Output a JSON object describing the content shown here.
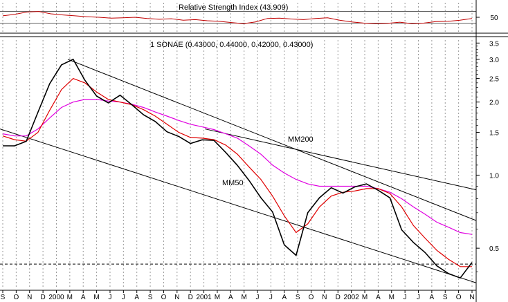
{
  "chart_data": [
    {
      "type": "line",
      "title": "Relative Strength Index (43.909)",
      "y_ticks": [
        "50"
      ],
      "ylim": [
        0,
        100
      ],
      "grid": true,
      "series": [
        {
          "values": [
            55,
            60,
            68,
            70,
            62,
            58,
            55,
            52,
            50,
            47,
            48,
            50,
            46,
            43,
            45,
            40,
            42,
            38,
            36,
            32,
            28,
            34,
            46,
            47,
            44,
            42,
            46,
            48,
            40,
            34,
            30,
            28,
            29,
            33,
            28,
            30,
            35,
            36,
            40,
            46
          ]
        }
      ],
      "colors": {
        "line": "#c00000"
      }
    },
    {
      "type": "line",
      "title": "1 SONAE (0.43000, 0.44000, 0.42000, 0.43000)",
      "y_scale": "log",
      "ylim": [
        0.34,
        3.6
      ],
      "y_ticks": [
        "3.5",
        "3.0",
        "2.5",
        "2.0",
        "1.5",
        "1.0",
        "0.5"
      ],
      "x_tick_labels": [
        "S",
        "O",
        "N",
        "D",
        "2000",
        "M",
        "A",
        "M",
        "J",
        "J",
        "A",
        "S",
        "O",
        "N",
        "D",
        "2001",
        "M",
        "A",
        "M",
        "J",
        "J",
        "A",
        "S",
        "O",
        "N",
        "D",
        "2002",
        "M",
        "A",
        "M",
        "J",
        "J",
        "A",
        "S",
        "O",
        "N"
      ],
      "grid": true,
      "annotations": [
        "MM200",
        "MM50"
      ],
      "reference_line": 0.43,
      "series": [
        {
          "values": [
            1.3,
            1.32,
            1.4,
            1.8,
            2.4,
            2.8,
            3.0,
            2.5,
            2.1,
            2.0,
            2.1,
            1.95,
            1.8,
            1.65,
            1.52,
            1.42,
            1.35,
            1.42,
            1.38,
            1.25,
            1.08,
            0.95,
            0.82,
            0.7,
            0.52,
            0.46,
            0.7,
            0.82,
            0.88,
            0.85,
            0.88,
            0.92,
            0.88,
            0.8,
            0.6,
            0.52,
            0.48,
            0.43,
            0.39,
            0.38,
            0.43
          ]
        },
        {
          "values": [
            1.45,
            1.4,
            1.38,
            1.5,
            1.85,
            2.25,
            2.5,
            2.4,
            2.2,
            2.05,
            2.0,
            1.95,
            1.86,
            1.75,
            1.62,
            1.5,
            1.43,
            1.42,
            1.4,
            1.33,
            1.22,
            1.08,
            0.96,
            0.82,
            0.68,
            0.58,
            0.63,
            0.74,
            0.82,
            0.85,
            0.86,
            0.88,
            0.88,
            0.84,
            0.74,
            0.62,
            0.55,
            0.49,
            0.45,
            0.42,
            0.42
          ]
        },
        {
          "values": [
            1.48,
            1.45,
            1.45,
            1.55,
            1.72,
            1.9,
            2.0,
            2.05,
            2.05,
            2.02,
            2.0,
            1.96,
            1.9,
            1.82,
            1.75,
            1.68,
            1.62,
            1.58,
            1.54,
            1.48,
            1.42,
            1.32,
            1.22,
            1.1,
            1.02,
            0.96,
            0.92,
            0.9,
            0.9,
            0.9,
            0.9,
            0.9,
            0.88,
            0.85,
            0.8,
            0.74,
            0.69,
            0.64,
            0.61,
            0.58,
            0.57
          ]
        }
      ],
      "trendlines": [
        {
          "from": [
            0,
            3.0
          ],
          "to": [
            1,
            0.65
          ]
        },
        {
          "from": [
            0,
            1.55
          ],
          "to": [
            1,
            0.36
          ]
        },
        {
          "from": [
            0,
            1.55
          ],
          "to": [
            1,
            0.87
          ]
        }
      ],
      "colors": {
        "price": "#000000",
        "mm50": "#e00000",
        "mm200": "#e000e0",
        "annotation_mm50": "#d00000",
        "annotation_mm200": "#d000d0"
      }
    }
  ]
}
